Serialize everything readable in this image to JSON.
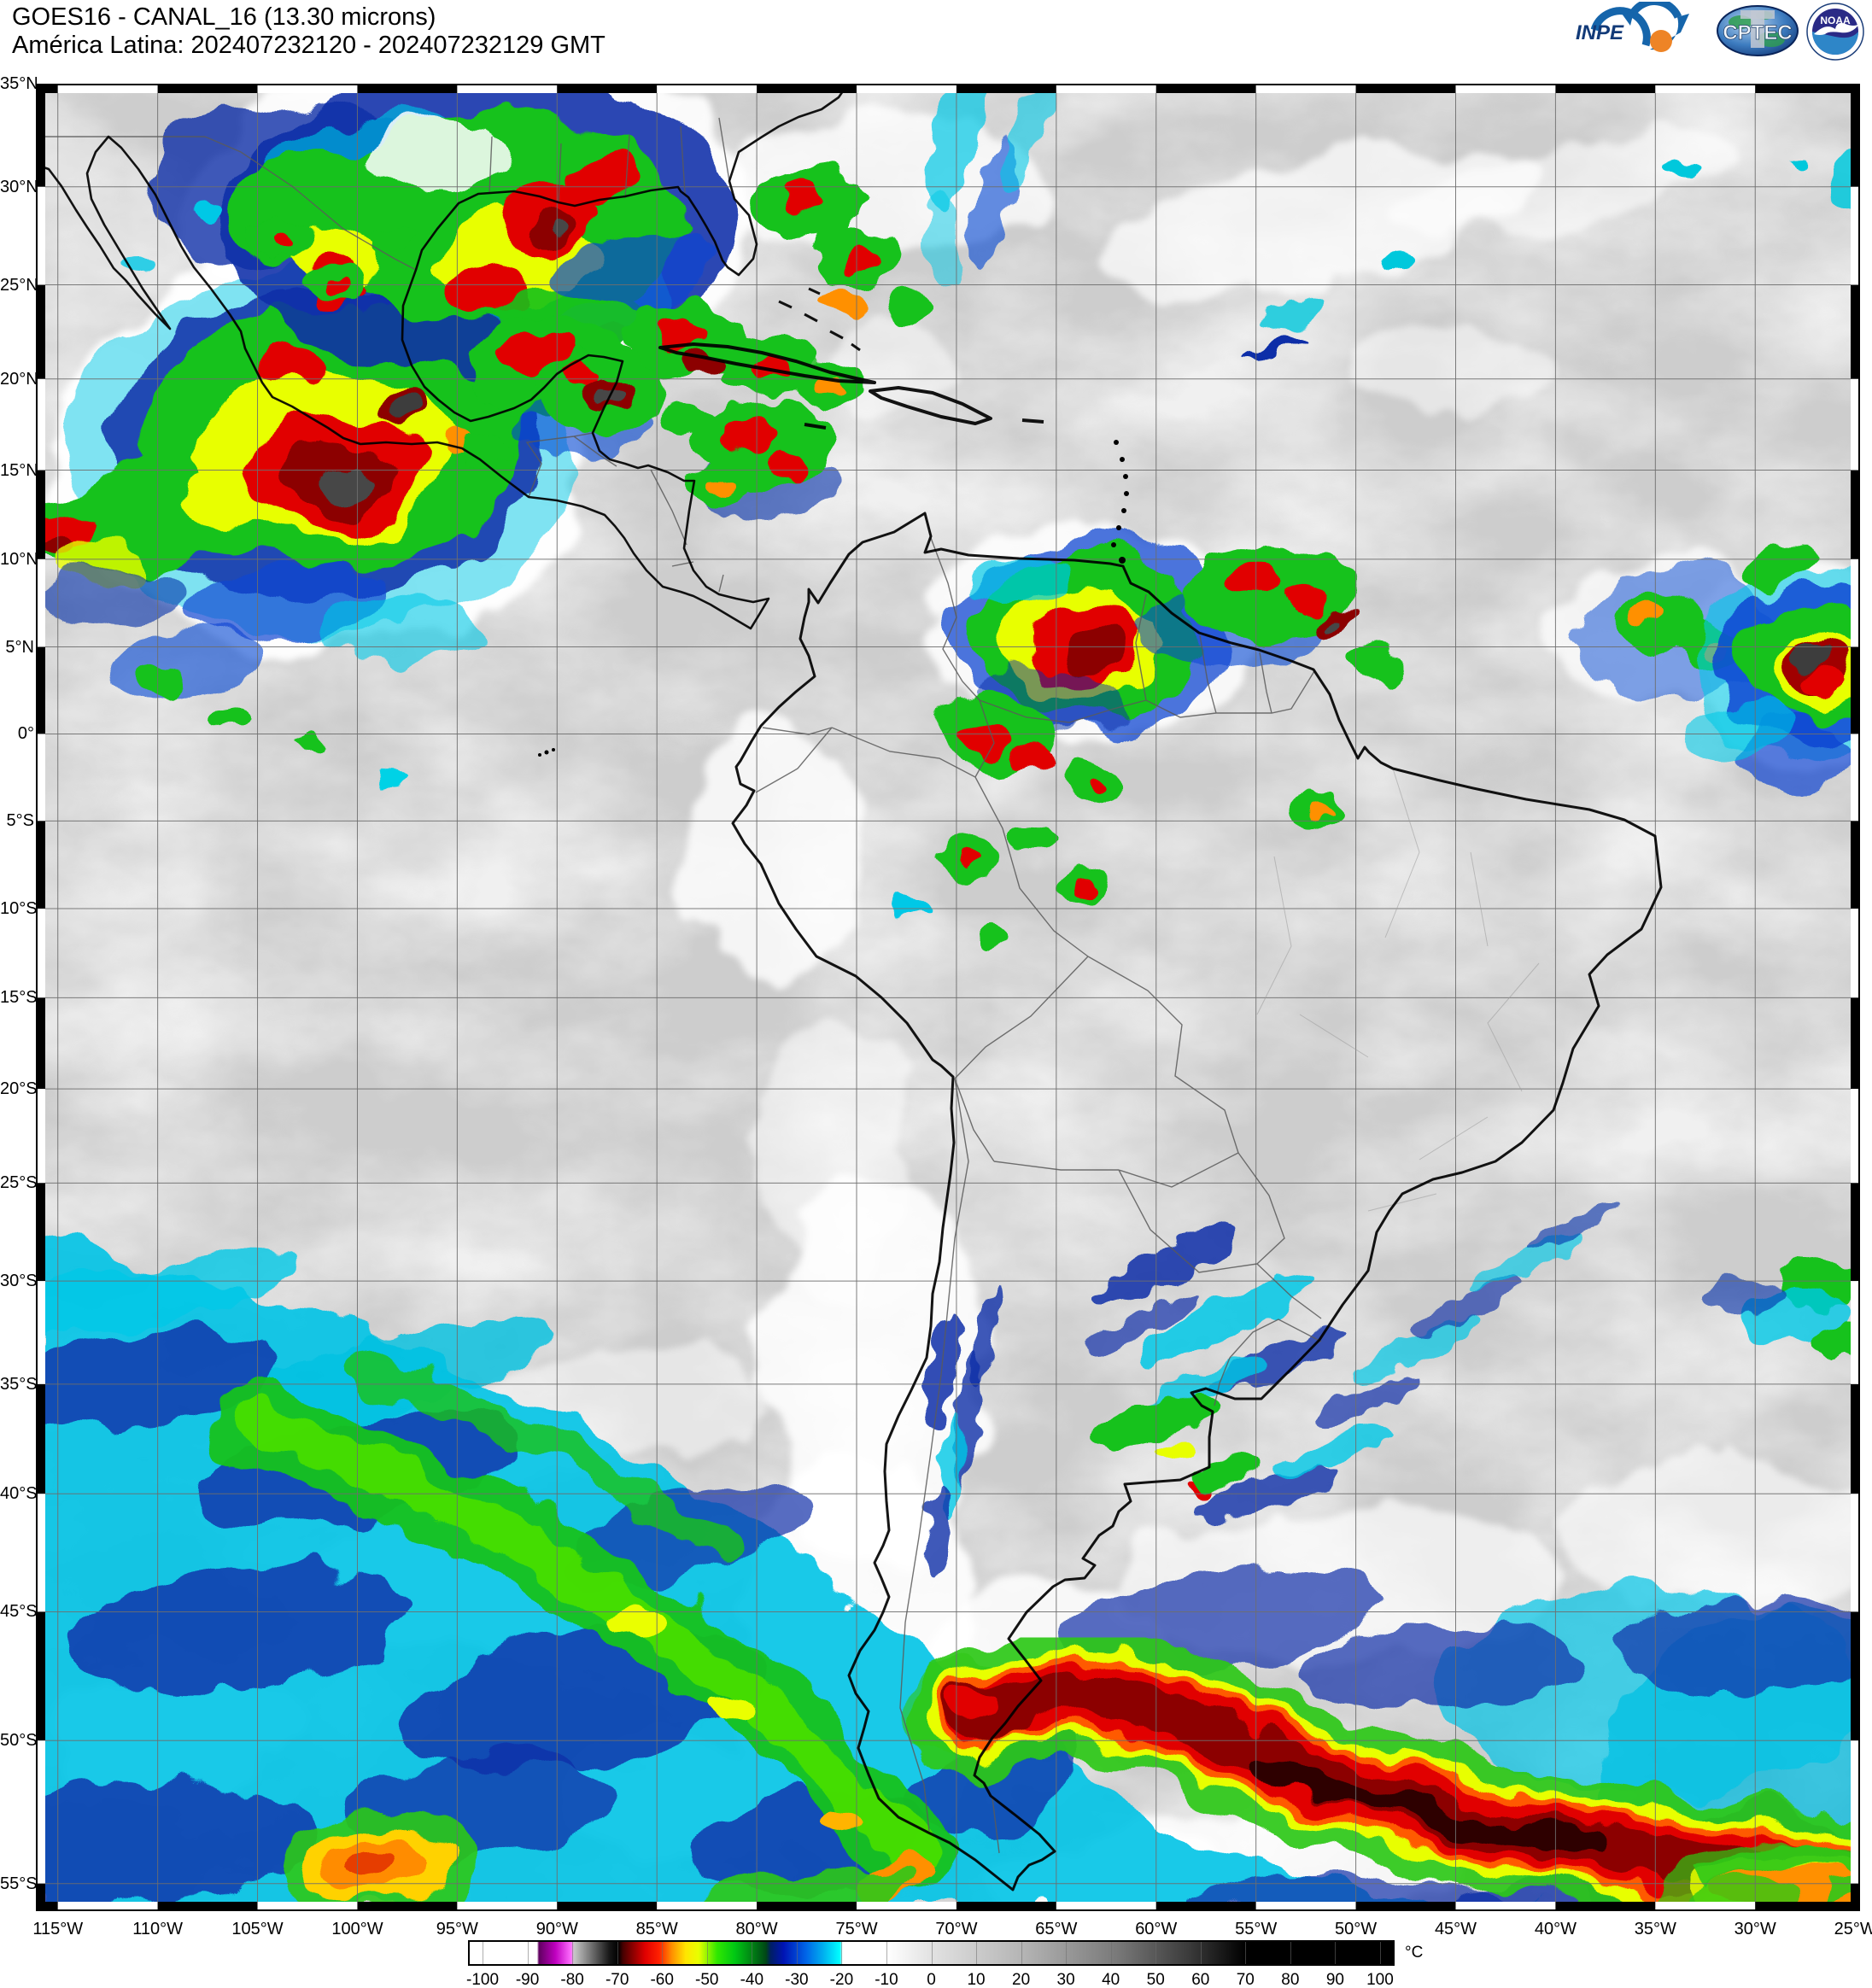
{
  "header": {
    "title_line1": "GOES16 - CANAL_16 (13.30 microns)",
    "title_line2": "América Latina: 202407232120 - 202407232129 GMT"
  },
  "logos": {
    "inpe": "INPE",
    "cptec": "CPTEC",
    "noaa": "NOAA"
  },
  "map": {
    "lat_values": [
      35,
      30,
      25,
      20,
      15,
      10,
      5,
      0,
      -5,
      -10,
      -15,
      -20,
      -25,
      -30,
      -35,
      -40,
      -45,
      -50,
      -55
    ],
    "lat_labels": [
      "35°N",
      "30°N",
      "25°N",
      "20°N",
      "15°N",
      "10°N",
      "5°N",
      "0°",
      "5°S",
      "10°S",
      "15°S",
      "20°S",
      "25°S",
      "30°S",
      "35°S",
      "40°S",
      "45°S",
      "50°S",
      "55°S"
    ],
    "lon_values": [
      115,
      110,
      105,
      100,
      95,
      90,
      85,
      80,
      75,
      70,
      65,
      60,
      55,
      50,
      45,
      40,
      35,
      30,
      25
    ],
    "lon_labels": [
      "115°W",
      "110°W",
      "105°W",
      "100°W",
      "95°W",
      "90°W",
      "85°W",
      "80°W",
      "75°W",
      "70°W",
      "65°W",
      "60°W",
      "55°W",
      "50°W",
      "45°W",
      "40°W",
      "35°W",
      "30°W",
      "25°W"
    ]
  },
  "colorbar": {
    "unit": "°C",
    "tick_values": [
      -100,
      -90,
      -80,
      -70,
      -60,
      -50,
      -40,
      -30,
      -20,
      -10,
      0,
      10,
      20,
      30,
      40,
      50,
      60,
      70,
      80,
      90,
      100
    ],
    "tick_labels": [
      "-100",
      "-90",
      "-80",
      "-70",
      "-60",
      "-50",
      "-40",
      "-30",
      "-20",
      "-10",
      "0",
      "10",
      "20",
      "30",
      "40",
      "50",
      "60",
      "70",
      "80",
      "90",
      "100"
    ],
    "min": -100,
    "max": 100,
    "stops": [
      [
        0.0,
        "#ffffff"
      ],
      [
        7.3,
        "#ffffff"
      ],
      [
        7.5,
        "#600060"
      ],
      [
        9.3,
        "#c000c0"
      ],
      [
        11.0,
        "#ff70ff"
      ],
      [
        11.3,
        "#c8c8c8"
      ],
      [
        15.1,
        "#181818"
      ],
      [
        16.1,
        "#000000"
      ],
      [
        16.6,
        "#460000"
      ],
      [
        19.0,
        "#e00000"
      ],
      [
        20.5,
        "#ff2000"
      ],
      [
        21.9,
        "#ff9000"
      ],
      [
        23.4,
        "#ffe600"
      ],
      [
        24.8,
        "#e8ff00"
      ],
      [
        26.8,
        "#30e800"
      ],
      [
        28.7,
        "#00c814"
      ],
      [
        30.6,
        "#008214"
      ],
      [
        32.1,
        "#004616"
      ],
      [
        32.6,
        "#001e64"
      ],
      [
        34.0,
        "#0014b4"
      ],
      [
        36.4,
        "#0064e8"
      ],
      [
        38.4,
        "#00b4f0"
      ],
      [
        40.1,
        "#00ffff"
      ],
      [
        40.4,
        "#ffffff"
      ],
      [
        45.2,
        "#ffffff"
      ],
      [
        50.0,
        "#e2e2e2"
      ],
      [
        60.0,
        "#b4b4b4"
      ],
      [
        70.0,
        "#7a7a7a"
      ],
      [
        78.0,
        "#3a3a3a"
      ],
      [
        84.0,
        "#000000"
      ],
      [
        100.0,
        "#000000"
      ]
    ]
  },
  "colors": {
    "map_background": "#cdcdcd",
    "grid_line": "#6e6e6e",
    "coastline": "#000000",
    "cold_cloud_red": "#e10000",
    "cold_cloud_green": "#16c21c",
    "cold_cloud_cyan": "#00c3e6"
  }
}
